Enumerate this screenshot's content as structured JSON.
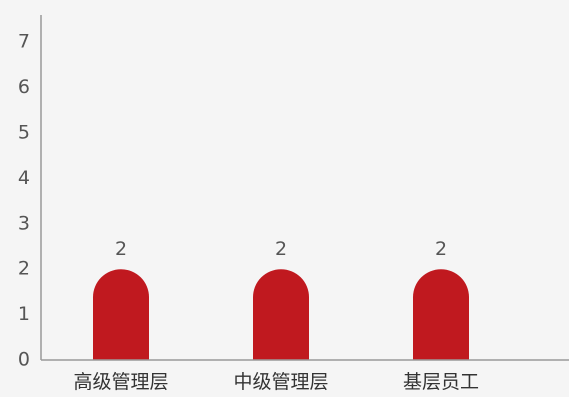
{
  "chart_data": {
    "type": "bar",
    "categories": [
      "高级管理层",
      "中级管理层",
      "基层员工"
    ],
    "values": [
      2,
      2,
      2
    ],
    "title": "",
    "xlabel": "",
    "ylabel": "",
    "ylim": [
      0,
      7.6
    ],
    "yticks": [
      0,
      1,
      2,
      3,
      4,
      5,
      6,
      7
    ],
    "grid": false,
    "legend": "none",
    "bar_color": "#c0191f",
    "data_labels": true
  }
}
